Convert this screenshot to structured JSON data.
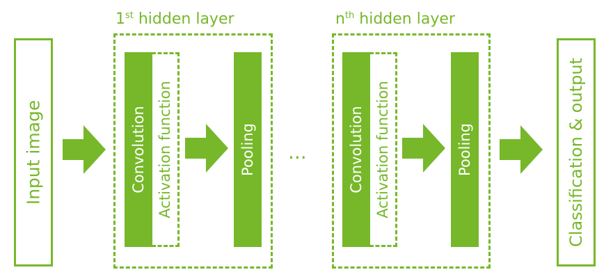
{
  "colors": {
    "accent": "#76b82a"
  },
  "input": {
    "label": "Input image"
  },
  "output": {
    "label": "Classification & output"
  },
  "layers": [
    {
      "title_prefix": "1",
      "title_sup": "st",
      "title_rest": " hidden layer",
      "convolution": "Convolution",
      "activation": "Activation function",
      "pooling": "Pooling"
    },
    {
      "title_prefix": "n",
      "title_sup": "th",
      "title_rest": " hidden layer",
      "convolution": "Convolution",
      "activation": "Activation function",
      "pooling": "Pooling"
    }
  ],
  "ellipsis": "..."
}
